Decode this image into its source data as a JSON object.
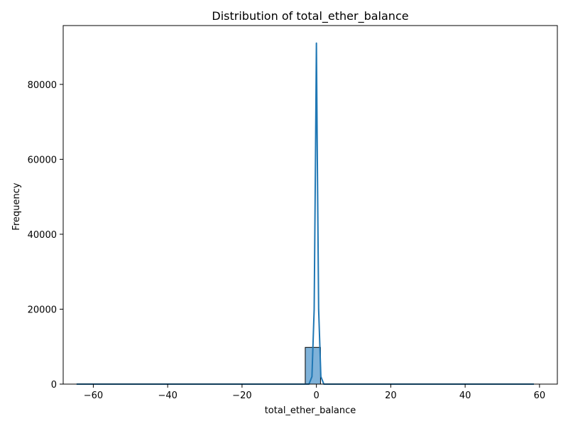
{
  "chart_data": {
    "type": "bar",
    "title": "Distribution of total_ether_balance",
    "xlabel": "total_ether_balance",
    "ylabel": "Frequency",
    "xlim": [
      -68.1,
      64.8
    ],
    "ylim": [
      0,
      95700
    ],
    "x_ticks": [
      -60,
      -40,
      -20,
      0,
      20,
      40,
      60
    ],
    "y_ticks": [
      0,
      20000,
      40000,
      60000,
      80000
    ],
    "grid": false,
    "legend": "none",
    "bin_edges": [
      -64.5,
      -60.4,
      -56.3,
      -52.2,
      -48.1,
      -44.0,
      -39.9,
      -35.8,
      -31.7,
      -27.6,
      -23.5,
      -19.4,
      -15.3,
      -11.2,
      -7.1,
      -3.0,
      1.1,
      5.2,
      9.3,
      13.4,
      17.5,
      21.6,
      25.7,
      29.8,
      33.9,
      38.0,
      42.1,
      46.2,
      50.3,
      54.4,
      58.5
    ],
    "counts": [
      1,
      0,
      0,
      0,
      0,
      0,
      0,
      0,
      0,
      0,
      0,
      0,
      0,
      0,
      0,
      9800,
      0,
      0,
      0,
      0,
      0,
      0,
      0,
      0,
      0,
      0,
      0,
      0,
      0,
      1
    ],
    "kde": {
      "x": [
        -64.5,
        -2.0,
        -1.2,
        -0.6,
        -0.25,
        0.0,
        0.25,
        0.6,
        1.2,
        2.0,
        58.5
      ],
      "y": [
        0,
        0,
        2000,
        20000,
        60000,
        91000,
        60000,
        20000,
        2000,
        0,
        0
      ]
    },
    "colors": {
      "bar_fill": "#7fb2d9",
      "bar_edge": "#000000",
      "kde_line": "#1f77b4"
    }
  }
}
